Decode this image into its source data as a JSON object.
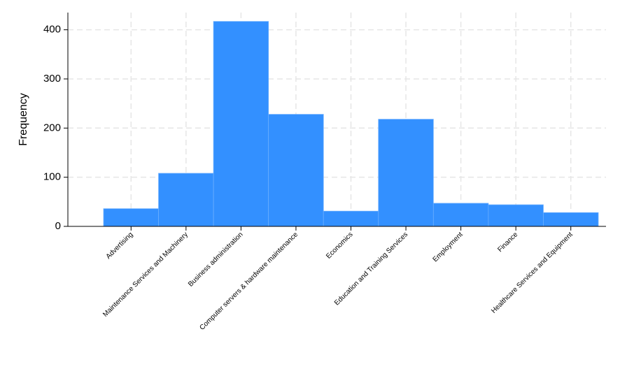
{
  "chart_data": {
    "type": "bar",
    "y_label": "Frequency",
    "categories": [
      "Advertising",
      "Maintenance Services and Machinery",
      "Business administration",
      "Computer servers & hardware maintenance",
      "Economics",
      "Education and Training Services",
      "Employment",
      "Finance",
      "Healthcare Services and Equipment"
    ],
    "values": [
      36,
      108,
      417,
      228,
      31,
      218,
      47,
      44,
      28
    ],
    "color": "#3390ff",
    "ylim": [
      0,
      435
    ],
    "yticks": [
      0,
      100,
      200,
      300,
      400
    ],
    "grid": true
  }
}
